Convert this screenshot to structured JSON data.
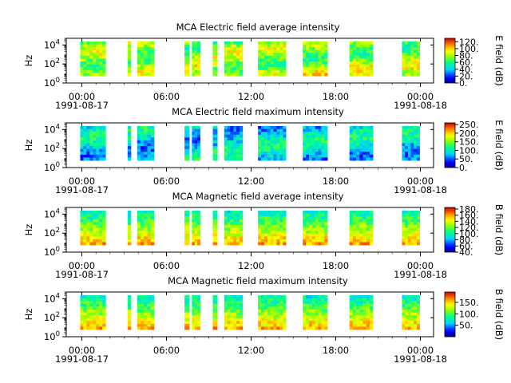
{
  "chart_data": [
    {
      "type": "heatmap",
      "title": "MCA  Electric field average intensity",
      "ylabel": "Hz",
      "colorbar_label": "E field (dB)",
      "colorbar_range": [
        0,
        130
      ],
      "colorbar_ticks": [
        "0.",
        "20.",
        "40.",
        "60.",
        "80.",
        "100.",
        "120."
      ],
      "colorbar_tick_values": [
        0,
        20,
        40,
        60,
        80,
        100,
        120
      ],
      "colormap": "rainbow",
      "level": 0.62,
      "x_ticks": [
        {
          "time": "00:00",
          "date": "1991-08-17"
        },
        {
          "time": "06:00",
          "date": ""
        },
        {
          "time": "12:00",
          "date": ""
        },
        {
          "time": "18:00",
          "date": ""
        },
        {
          "time": "00:00",
          "date": "1991-08-18"
        }
      ],
      "y_scale": "log",
      "y_range": [
        1,
        50000
      ],
      "y_ticks": [
        "10^4",
        "10^2",
        "10^0"
      ],
      "y_tick_values": [
        10000,
        100,
        1
      ]
    },
    {
      "type": "heatmap",
      "title": "MCA  Electric field maximum intensity",
      "ylabel": "Hz",
      "colorbar_label": "E field (dB)",
      "colorbar_range": [
        0,
        260
      ],
      "colorbar_ticks": [
        "0.",
        "50.",
        "100.",
        "150.",
        "200.",
        "250."
      ],
      "colorbar_tick_values": [
        0,
        50,
        100,
        150,
        200,
        250
      ],
      "colormap": "rainbow",
      "level": 0.4,
      "x_ticks": [
        {
          "time": "00:00",
          "date": "1991-08-17"
        },
        {
          "time": "06:00",
          "date": ""
        },
        {
          "time": "12:00",
          "date": ""
        },
        {
          "time": "18:00",
          "date": ""
        },
        {
          "time": "00:00",
          "date": "1991-08-18"
        }
      ],
      "y_scale": "log",
      "y_range": [
        1,
        50000
      ],
      "y_ticks": [
        "10^4",
        "10^2",
        "10^0"
      ],
      "y_tick_values": [
        10000,
        100,
        1
      ]
    },
    {
      "type": "heatmap",
      "title": "MCA  Magnetic field average intensity",
      "ylabel": "Hz",
      "colorbar_label": "B field (dB)",
      "colorbar_range": [
        40,
        185
      ],
      "colorbar_ticks": [
        "40.",
        "60.",
        "80.",
        "100.",
        "120.",
        "140.",
        "160.",
        "180."
      ],
      "colorbar_tick_values": [
        40,
        60,
        80,
        100,
        120,
        140,
        160,
        180
      ],
      "colormap": "rainbow",
      "level": 0.55,
      "x_ticks": [
        {
          "time": "00:00",
          "date": "1991-08-17"
        },
        {
          "time": "06:00",
          "date": ""
        },
        {
          "time": "12:00",
          "date": ""
        },
        {
          "time": "18:00",
          "date": ""
        },
        {
          "time": "00:00",
          "date": "1991-08-18"
        }
      ],
      "y_scale": "log",
      "y_range": [
        1,
        50000
      ],
      "y_ticks": [
        "10^4",
        "10^2",
        "10^0"
      ],
      "y_tick_values": [
        10000,
        100,
        1
      ]
    },
    {
      "type": "heatmap",
      "title": "MCA  Magnetic field maximum intensity",
      "ylabel": "Hz",
      "colorbar_label": "B field (dB)",
      "colorbar_range": [
        0,
        195
      ],
      "colorbar_ticks": [
        "50.",
        "100.",
        "150."
      ],
      "colorbar_tick_values": [
        50,
        100,
        150
      ],
      "colormap": "rainbow",
      "level": 0.55,
      "x_ticks": [
        {
          "time": "00:00",
          "date": "1991-08-17"
        },
        {
          "time": "06:00",
          "date": ""
        },
        {
          "time": "12:00",
          "date": ""
        },
        {
          "time": "18:00",
          "date": ""
        },
        {
          "time": "00:00",
          "date": "1991-08-18"
        }
      ],
      "y_scale": "log",
      "y_range": [
        1,
        50000
      ],
      "y_ticks": [
        "10^4",
        "10^2",
        "10^0"
      ],
      "y_tick_values": [
        10000,
        100,
        1
      ]
    }
  ]
}
